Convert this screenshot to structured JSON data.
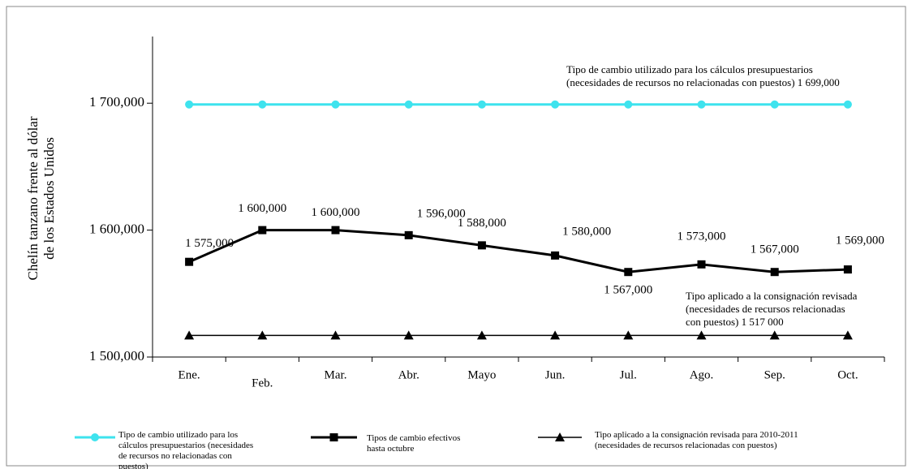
{
  "chart_data": {
    "type": "line",
    "y_label": [
      "Chelín tanzano frente al dólar",
      "de los Estados Unidos"
    ],
    "categories": [
      "Ene.",
      "Feb.",
      "Mar.",
      "Abr.",
      "Mayo",
      "Jun.",
      "Jul.",
      "Ago.",
      "Sep.",
      "Oct."
    ],
    "series": [
      {
        "name": "Tipo de cambio utilizado para los cálculos presupuestarios (necesidades de recursos no relacionadas con puestos)",
        "color": "#3ee3ee",
        "marker": "circle",
        "values": [
          1699000,
          1699000,
          1699000,
          1699000,
          1699000,
          1699000,
          1699000,
          1699000,
          1699000,
          1699000
        ]
      },
      {
        "name": "Tipos de cambio efectivos hasta octubre",
        "color": "#000000",
        "marker": "square",
        "values": [
          1575000,
          1600000,
          1600000,
          1596000,
          1588000,
          1580000,
          1567000,
          1573000,
          1567000,
          1569000
        ],
        "value_labels": [
          "1 575,000",
          "1 600,000",
          "1 600,000",
          "1 596,000",
          "1 588,000",
          "1 580,000",
          "1 567,000",
          "1 573,000",
          "1 567,000",
          "1 569,000"
        ]
      },
      {
        "name": "Tipo aplicado a la consignación revisada para 2010-2011 (necesidades de recursos relacionadas con puestos)",
        "color": "#000000",
        "marker": "triangle",
        "values": [
          1517000,
          1517000,
          1517000,
          1517000,
          1517000,
          1517000,
          1517000,
          1517000,
          1517000,
          1517000
        ]
      }
    ],
    "ylim": [
      1500000,
      1750000
    ],
    "yticks": [
      {
        "value": 1500000,
        "label": "1 500,000"
      },
      {
        "value": 1600000,
        "label": "1 600,000"
      },
      {
        "value": 1700000,
        "label": "1 700,000"
      }
    ],
    "annotations": [
      [
        "Tipo de cambio utilizado para los cálculos presupuestarios",
        "(necesidades de recursos no relacionadas con puestos) 1 699,000"
      ],
      [
        "Tipo aplicado a la consignación revisada",
        "(necesidades de recursos relacionadas",
        "con puestos)  1 517 000"
      ]
    ]
  }
}
